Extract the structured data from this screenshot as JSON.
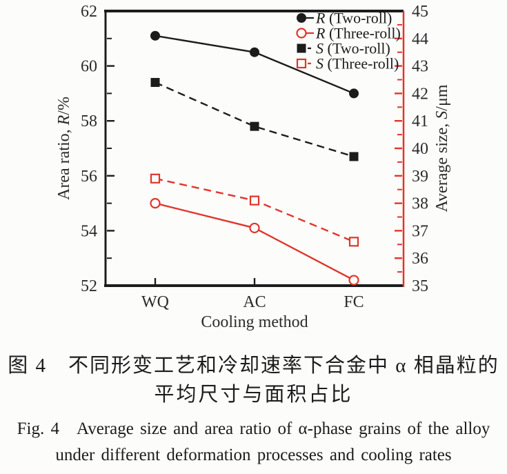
{
  "figure_caption": {
    "cn_line1": "图 4　不同形变工艺和冷却速率下合金中 α 相晶粒的",
    "cn_line2": "平均尺寸与面积占比",
    "en_line1": "Fig. 4 Average size and area ratio of α-phase grains of the alloy",
    "en_line2": "under different deformation processes and cooling rates"
  },
  "chart_data": {
    "type": "line",
    "categories": [
      "WQ",
      "AC",
      "FC"
    ],
    "xlabel": "Cooling method",
    "grid": false,
    "legend_position": "top-right-inside",
    "left_axis": {
      "label_prefix": "Area ratio, ",
      "label_var": "R",
      "label_suffix": "/%",
      "min": 52,
      "max": 62,
      "major_ticks": [
        52,
        54,
        56,
        58,
        60,
        62
      ],
      "minor_step": 1,
      "color": "#1c1c1c"
    },
    "right_axis": {
      "label_prefix": "Average size, ",
      "label_var": "S",
      "label_suffix": "/μm",
      "min": 35,
      "max": 45,
      "major_ticks": [
        35,
        36,
        37,
        38,
        39,
        40,
        41,
        42,
        43,
        44,
        45
      ],
      "minor_step": 0.5,
      "color": "#df352c"
    },
    "series": [
      {
        "name": "R (Two-roll)",
        "name_var": "R",
        "name_rest": " (Two-roll)",
        "axis": "left",
        "values": [
          61.1,
          60.5,
          59.0
        ],
        "color": "#1c1c1c",
        "line": "solid",
        "marker": "circle-filled"
      },
      {
        "name": "R (Three-roll)",
        "name_var": "R",
        "name_rest": " (Three-roll)",
        "axis": "left",
        "values": [
          55.0,
          54.1,
          52.2
        ],
        "color": "#df352c",
        "line": "solid",
        "marker": "circle-open"
      },
      {
        "name": "S (Two-roll)",
        "name_var": "S",
        "name_rest": " (Two-roll)",
        "axis": "right",
        "values": [
          42.4,
          40.8,
          39.7
        ],
        "color": "#1c1c1c",
        "line": "dashed",
        "marker": "square-filled"
      },
      {
        "name": "S (Three-roll)",
        "name_var": "S",
        "name_rest": " (Three-roll)",
        "axis": "right",
        "values": [
          38.9,
          38.1,
          36.6
        ],
        "color": "#df352c",
        "line": "dashed",
        "marker": "square-open"
      }
    ]
  }
}
